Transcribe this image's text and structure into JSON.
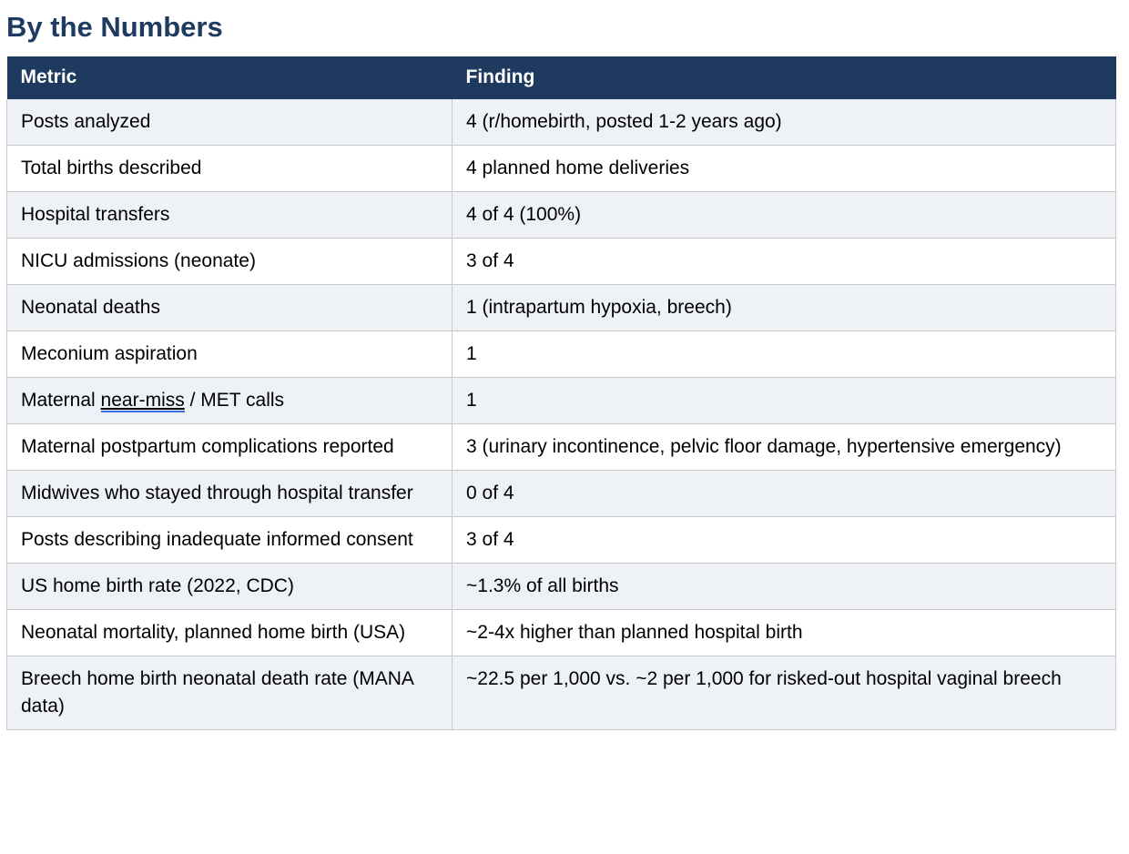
{
  "title": "By the Numbers",
  "colors": {
    "header_bg": "#1e3a5e",
    "header_text": "#ffffff",
    "title_text": "#1e3a5f",
    "row_alt_bg": "#eef1f5",
    "row_bg": "#ffffff",
    "border": "#c9c9c9",
    "spellcheck_underline": "#3d6ce0"
  },
  "table": {
    "columns": [
      {
        "label": "Metric"
      },
      {
        "label": "Finding"
      }
    ],
    "rows": [
      {
        "metric": "Posts analyzed",
        "finding": "4 (r/homebirth, posted 1-2 years ago)"
      },
      {
        "metric": "Total births described",
        "finding": "4 planned home deliveries"
      },
      {
        "metric": "Hospital transfers",
        "finding": "4 of 4 (100%)"
      },
      {
        "metric": "NICU admissions (neonate)",
        "finding": "3 of 4"
      },
      {
        "metric": "Neonatal deaths",
        "finding": "1 (intrapartum hypoxia, breech)"
      },
      {
        "metric": "Meconium aspiration",
        "finding": "1"
      },
      {
        "metric_parts": [
          {
            "text": "Maternal "
          },
          {
            "text": "near-miss",
            "underline": true
          },
          {
            "text": " / MET calls"
          }
        ],
        "finding": "1"
      },
      {
        "metric": "Maternal postpartum complications reported",
        "finding": "3 (urinary incontinence, pelvic floor damage, hypertensive emergency)"
      },
      {
        "metric": "Midwives who stayed through hospital transfer",
        "finding": "0 of 4"
      },
      {
        "metric": "Posts describing inadequate informed consent",
        "finding": "3 of 4"
      },
      {
        "metric": "US home birth rate (2022, CDC)",
        "finding": "~1.3% of all births"
      },
      {
        "metric": "Neonatal mortality, planned home birth (USA)",
        "finding": "~2-4x higher than planned hospital birth"
      },
      {
        "metric": "Breech home birth neonatal death rate (MANA data)",
        "finding": "~22.5 per 1,000 vs. ~2 per 1,000 for risked-out hospital vaginal breech"
      }
    ]
  }
}
